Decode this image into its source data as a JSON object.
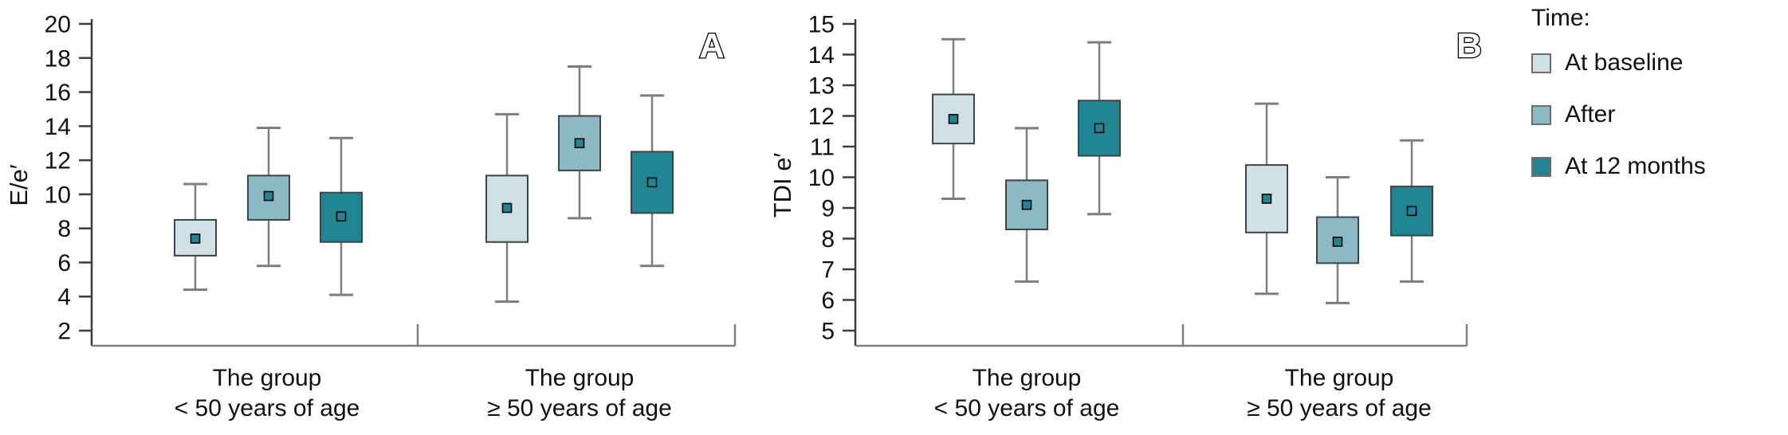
{
  "figure": {
    "legend": {
      "title": "Time:",
      "items": [
        {
          "label": "At baseline",
          "color": "#cfe0e6"
        },
        {
          "label": "After",
          "color": "#8db9c2"
        },
        {
          "label": "At 12 months",
          "color": "#218694"
        }
      ]
    }
  },
  "chart_data": [
    {
      "type": "boxplot",
      "panel_label": "A",
      "ylabel": "E/e′",
      "ylim": [
        2,
        20
      ],
      "ytick_step": 2,
      "grid": false,
      "legend_position": "right-of-figure",
      "categories": [
        {
          "line1": "The group",
          "line2": "< 50 years of age"
        },
        {
          "line1": "The group",
          "line2": "≥ 50 years of age"
        }
      ],
      "series": [
        {
          "name": "At baseline",
          "color": "#cfe0e6",
          "boxes": [
            {
              "whisker_low": 4.4,
              "q1": 6.4,
              "mean": 7.4,
              "q3": 8.5,
              "whisker_high": 10.6
            },
            {
              "whisker_low": 3.7,
              "q1": 7.2,
              "mean": 9.2,
              "q3": 11.1,
              "whisker_high": 14.7
            }
          ]
        },
        {
          "name": "After",
          "color": "#8db9c2",
          "boxes": [
            {
              "whisker_low": 5.8,
              "q1": 8.5,
              "mean": 9.9,
              "q3": 11.1,
              "whisker_high": 13.9
            },
            {
              "whisker_low": 8.6,
              "q1": 11.4,
              "mean": 13.0,
              "q3": 14.6,
              "whisker_high": 17.5
            }
          ]
        },
        {
          "name": "At 12 months",
          "color": "#218694",
          "boxes": [
            {
              "whisker_low": 4.1,
              "q1": 7.2,
              "mean": 8.7,
              "q3": 10.1,
              "whisker_high": 13.3
            },
            {
              "whisker_low": 5.8,
              "q1": 8.9,
              "mean": 10.7,
              "q3": 12.5,
              "whisker_high": 15.8
            }
          ]
        }
      ]
    },
    {
      "type": "boxplot",
      "panel_label": "B",
      "ylabel": "TDI e′",
      "ylim": [
        5,
        15
      ],
      "ytick_step": 1,
      "grid": false,
      "legend_position": "right-of-figure",
      "categories": [
        {
          "line1": "The group",
          "line2": "< 50 years of age"
        },
        {
          "line1": "The group",
          "line2": "≥ 50 years of age"
        }
      ],
      "series": [
        {
          "name": "At baseline",
          "color": "#cfe0e6",
          "boxes": [
            {
              "whisker_low": 9.3,
              "q1": 11.1,
              "mean": 11.9,
              "q3": 12.7,
              "whisker_high": 14.5
            },
            {
              "whisker_low": 6.2,
              "q1": 8.2,
              "mean": 9.3,
              "q3": 10.4,
              "whisker_high": 12.4
            }
          ]
        },
        {
          "name": "After",
          "color": "#8db9c2",
          "boxes": [
            {
              "whisker_low": 6.6,
              "q1": 8.3,
              "mean": 9.1,
              "q3": 9.9,
              "whisker_high": 11.6
            },
            {
              "whisker_low": 5.9,
              "q1": 7.2,
              "mean": 7.9,
              "q3": 8.7,
              "whisker_high": 10.0
            }
          ]
        },
        {
          "name": "At 12 months",
          "color": "#218694",
          "boxes": [
            {
              "whisker_low": 8.8,
              "q1": 10.7,
              "mean": 11.6,
              "q3": 12.5,
              "whisker_high": 14.4
            },
            {
              "whisker_low": 6.6,
              "q1": 8.1,
              "mean": 8.9,
              "q3": 9.7,
              "whisker_high": 11.2
            }
          ]
        }
      ]
    }
  ]
}
